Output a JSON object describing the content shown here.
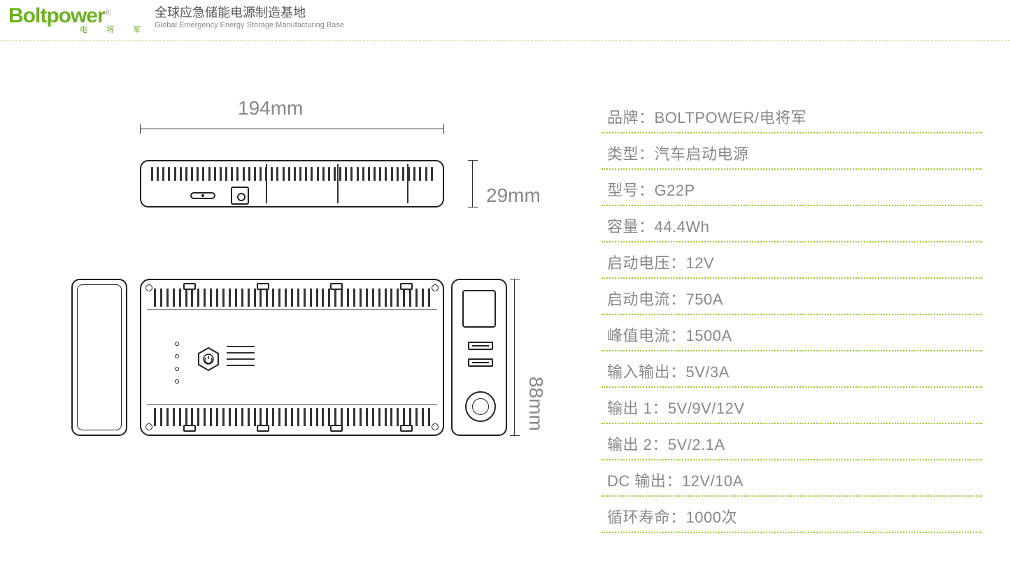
{
  "header": {
    "logo_main": "Boltpower",
    "logo_sub": "电 将 军",
    "reg_mark": "®",
    "slogan_cn": "全球应急储能电源制造基地",
    "slogan_en": "Global Emergency Energy Storage Manufacturing Base"
  },
  "dimensions": {
    "width": "194mm",
    "height": "29mm",
    "depth": "88mm"
  },
  "specs": [
    {
      "label": "品牌：",
      "value": "BOLTPOWER/电将军"
    },
    {
      "label": "类型：",
      "value": "汽车启动电源"
    },
    {
      "label": "型号：",
      "value": "G22P"
    },
    {
      "label": "容量：",
      "value": "44.4Wh"
    },
    {
      "label": "启动电压：",
      "value": "12V"
    },
    {
      "label": "启动电流：",
      "value": "750A"
    },
    {
      "label": "峰值电流：",
      "value": "1500A"
    },
    {
      "label": "输入输出：",
      "value": "5V/3A"
    },
    {
      "label": "输出 1：",
      "value": "5V/9V/12V"
    },
    {
      "label": "输出 2：",
      "value": "5V/2.1A"
    },
    {
      "label": "DC 输出：",
      "value": "12V/10A"
    },
    {
      "label": "循环寿命：",
      "value": "1000次"
    }
  ],
  "colors": {
    "brand_green": "#6eb023",
    "dotted_green": "#9ccc3c",
    "text_gray": "#888888",
    "line_black": "#222222",
    "background": "#ffffff"
  },
  "diagram": {
    "views": [
      "side-profile",
      "left-end",
      "top",
      "right-end"
    ],
    "stroke_color": "#222222",
    "stroke_width": 2,
    "vent_count_side": 50,
    "vent_count_top": 45
  }
}
